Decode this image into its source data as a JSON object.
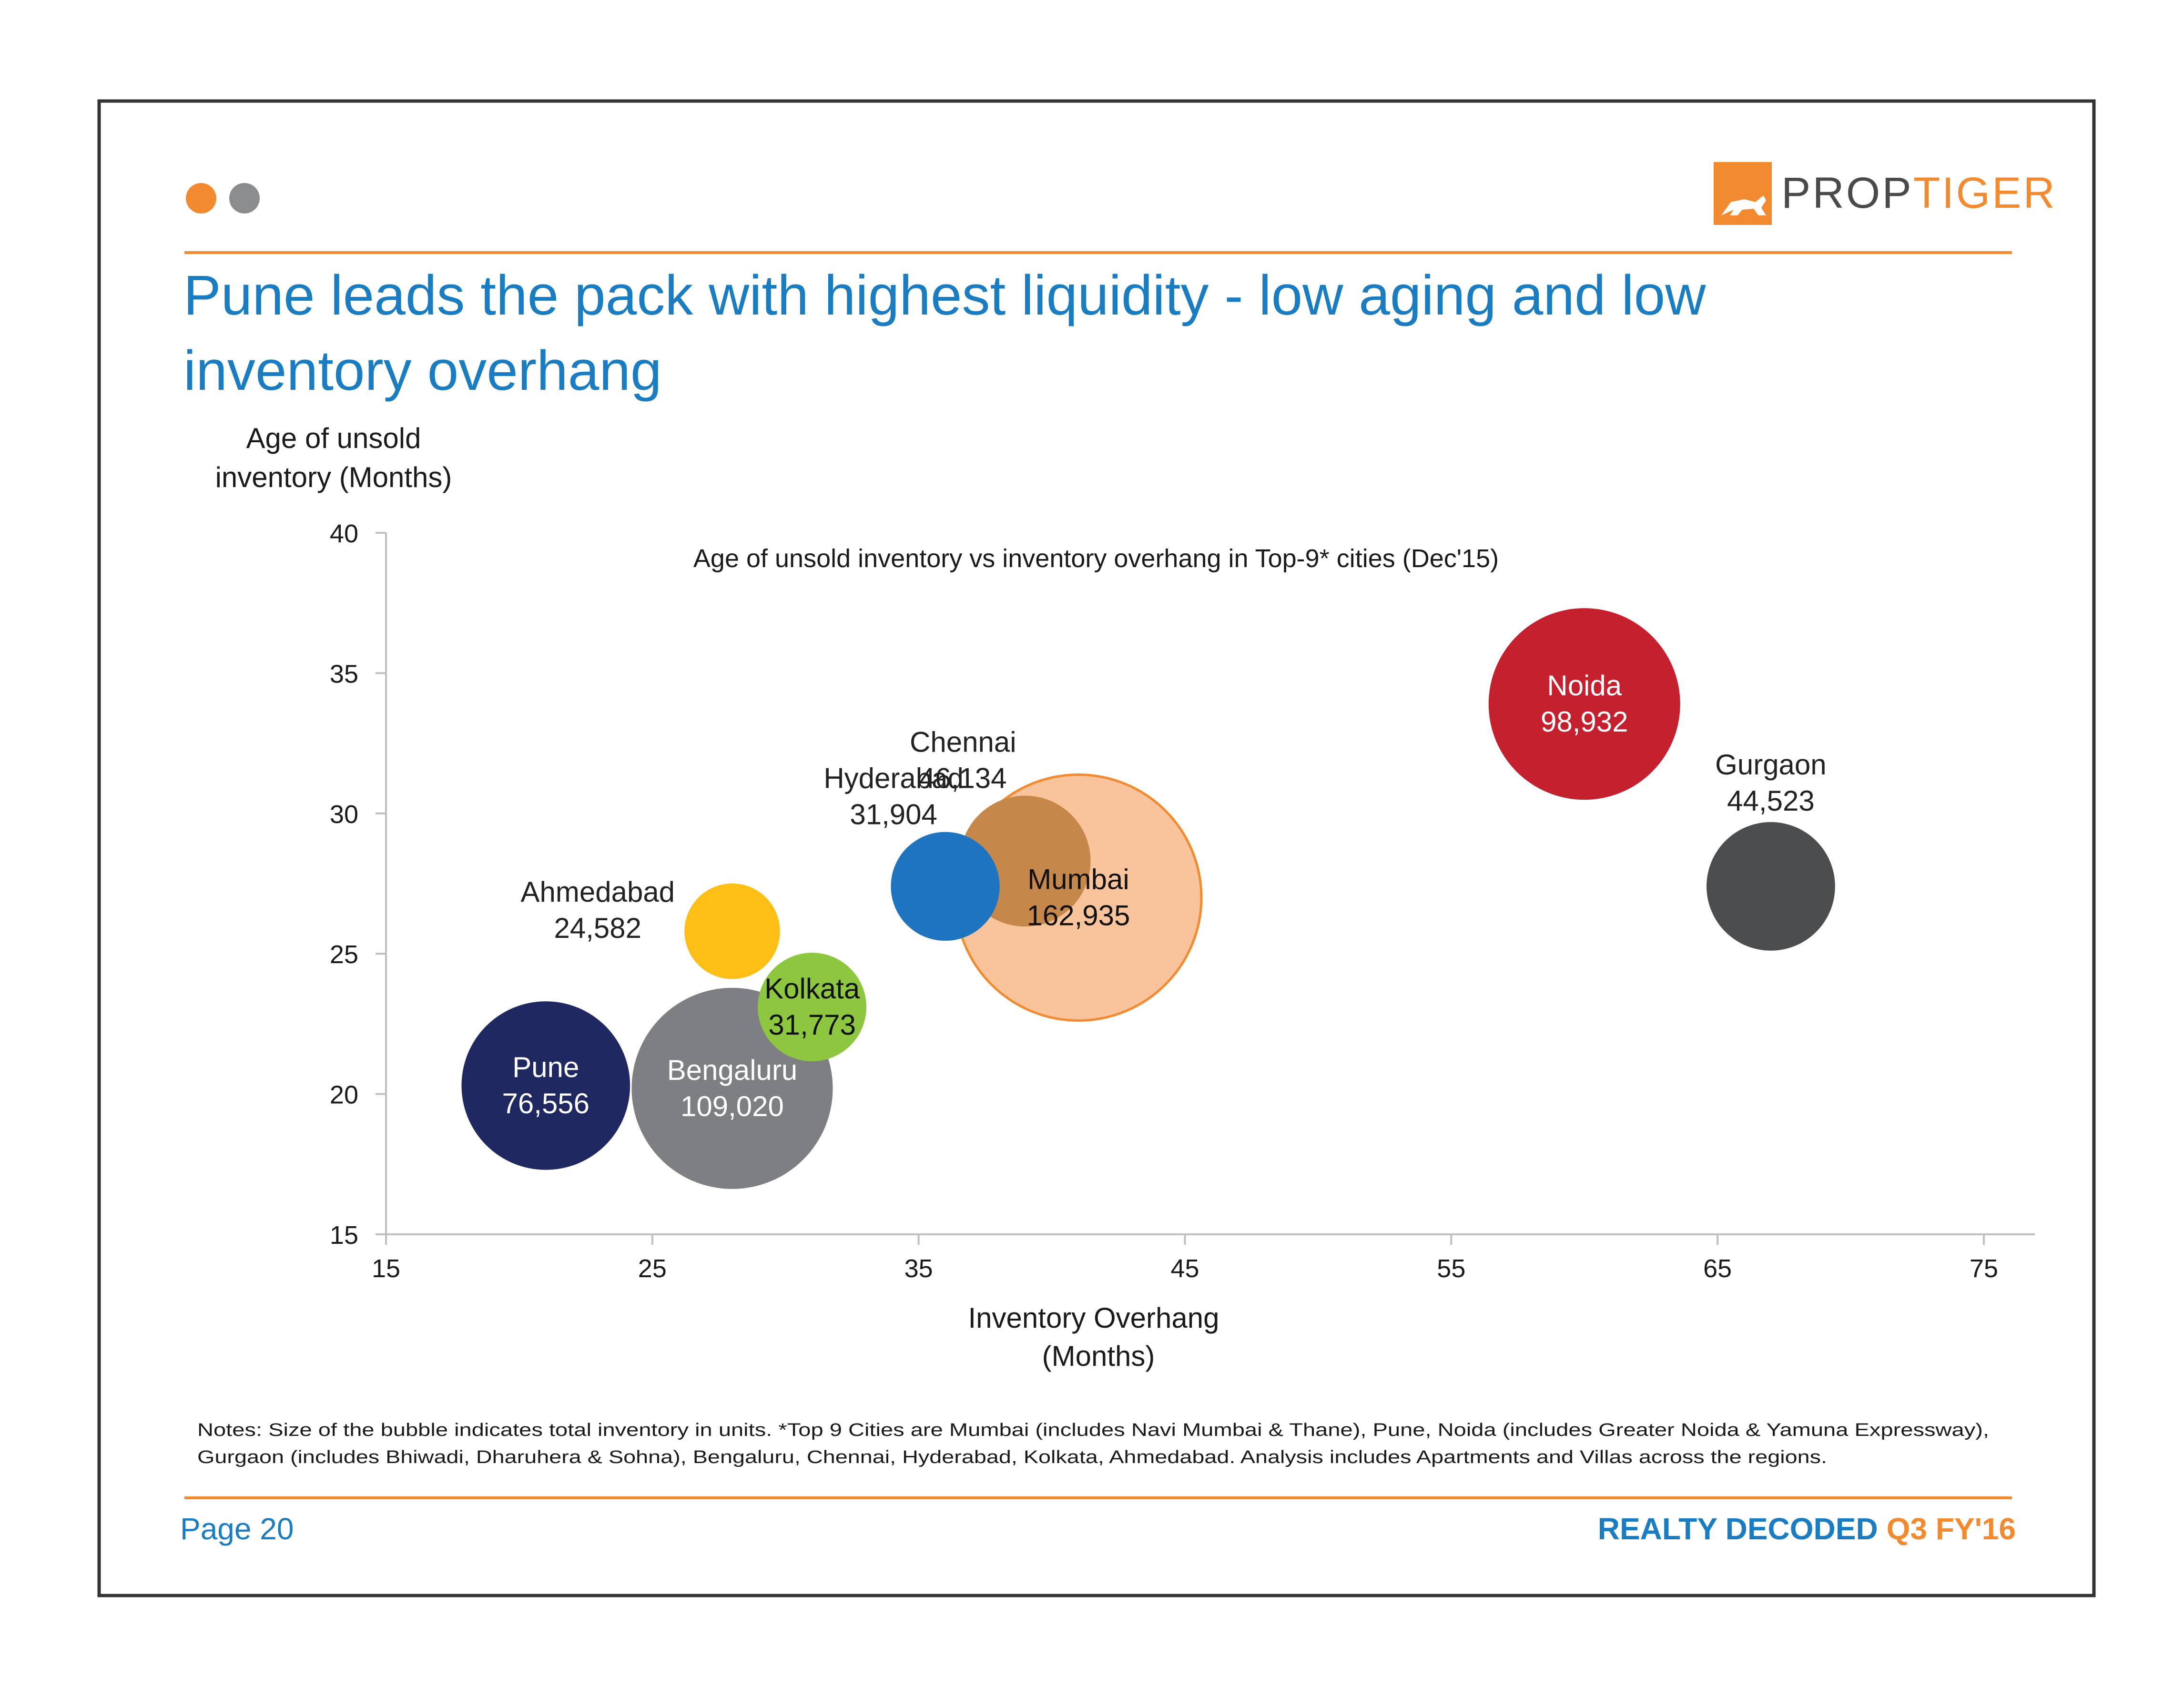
{
  "header": {
    "brand_left": "PROP",
    "brand_right": "TIGER",
    "title_line1": "Pune leads the pack with highest liquidity - low aging and low",
    "title_line2": "inventory overhang"
  },
  "footer": {
    "notes_line1": "Notes: Size of the bubble indicates total inventory in units. *Top 9 Cities are Mumbai (includes Navi Mumbai & Thane), Pune, Noida (includes Greater Noida & Yamuna Expressway),",
    "notes_line2": "Gurgaon (includes Bhiwadi, Dharuhera & Sohna), Bengaluru, Chennai, Hyderabad, Kolkata, Ahmedabad. Analysis includes Apartments and Villas across the regions.",
    "page": "Page 20",
    "report_name": "REALTY DECODED",
    "report_period": "Q3 FY'16"
  },
  "colors": {
    "accent_orange": "#F28A30",
    "accent_gray": "#8A8C8E",
    "title_blue": "#1B7DC1",
    "frame": "#333333"
  },
  "chart_data": {
    "type": "scatter",
    "title": "Age of unsold inventory vs inventory overhang in Top-9* cities (Dec'15)",
    "ylabel_line1": "Age of unsold",
    "ylabel_line2": "inventory (Months)",
    "xlabel_line1": "Inventory Overhang",
    "xlabel_line2": "(Months)",
    "xlim": [
      15,
      75
    ],
    "ylim": [
      15,
      40
    ],
    "xticks": [
      15,
      25,
      35,
      45,
      55,
      65,
      75
    ],
    "yticks": [
      15,
      20,
      25,
      30,
      35,
      40
    ],
    "bubble_size": "total inventory in units",
    "points": [
      {
        "city": "Mumbai",
        "size_label": "162,935",
        "x": 41,
        "y": 27,
        "size": 162935,
        "color": "#F9C39B",
        "stroke": "#F28A30",
        "text_color": "#111111",
        "label_pos": "center"
      },
      {
        "city": "Chennai",
        "size_label": "46,134",
        "x": 39,
        "y": 28.3,
        "size": 46134,
        "color": "#C5884A",
        "text_color": "#222222",
        "label_pos": "above-left"
      },
      {
        "city": "Hyderabad",
        "size_label": "31,904",
        "x": 36,
        "y": 27.4,
        "size": 31904,
        "color": "#1F74BF",
        "text_color": "#222222",
        "label_pos": "above-left"
      },
      {
        "city": "Ahmedabad",
        "size_label": "24,582",
        "x": 28,
        "y": 25.8,
        "size": 24582,
        "color": "#FDBE16",
        "text_color": "#222222",
        "label_pos": "left"
      },
      {
        "city": "Kolkata",
        "size_label": "31,773",
        "x": 31,
        "y": 23.1,
        "size": 31773,
        "color": "#8DC63F",
        "text_color": "#111111",
        "label_pos": "center"
      },
      {
        "city": "Pune",
        "size_label": "76,556",
        "x": 21,
        "y": 20.3,
        "size": 76556,
        "color": "#1F2861",
        "text_color": "#ffffff",
        "label_pos": "center"
      },
      {
        "city": "Bengaluru",
        "size_label": "109,020",
        "x": 28,
        "y": 20.2,
        "size": 109020,
        "color": "#7D7F82",
        "text_color": "#ffffff",
        "label_pos": "center"
      },
      {
        "city": "Noida",
        "size_label": "98,932",
        "x": 60,
        "y": 33.9,
        "size": 98932,
        "color": "#C5202E",
        "text_color": "#ffffff",
        "label_pos": "center"
      },
      {
        "city": "Gurgaon",
        "size_label": "44,523",
        "x": 67,
        "y": 27.4,
        "size": 44523,
        "color": "#4B4D4F",
        "text_color": "#222222",
        "label_pos": "above"
      }
    ]
  }
}
